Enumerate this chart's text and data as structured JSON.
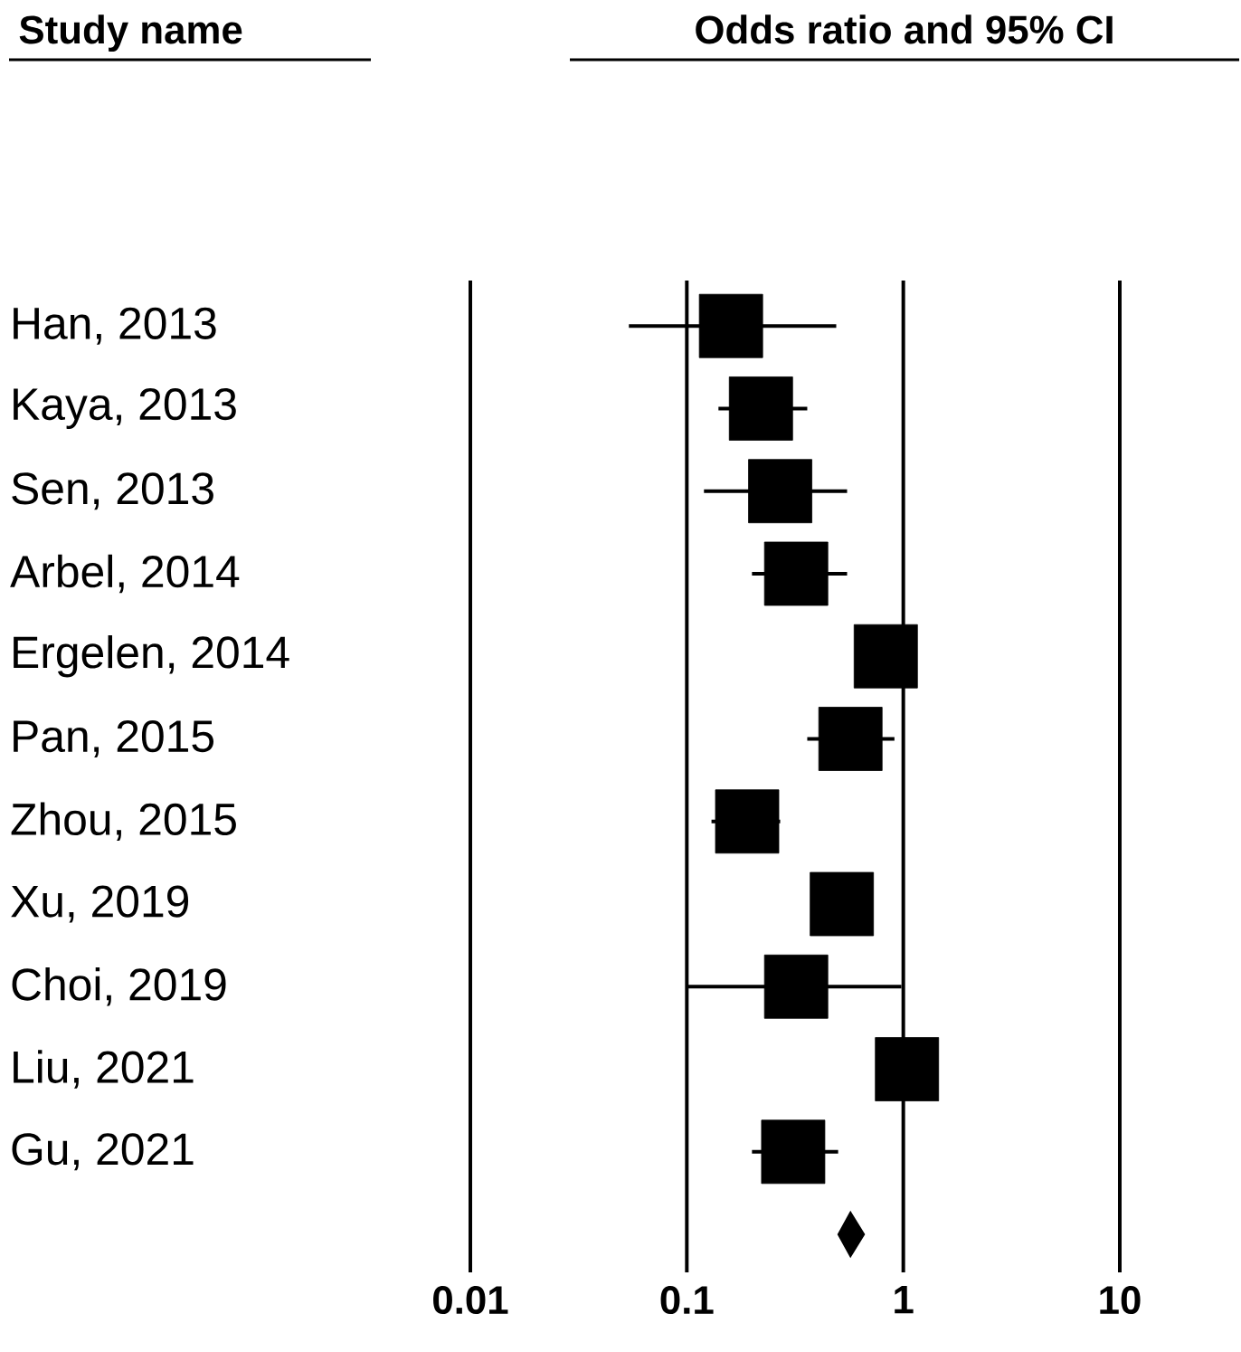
{
  "chart_data": {
    "type": "scatter",
    "title": "Odds ratio and 95% CI",
    "annotations": [
      "Study name"
    ],
    "orientation": "horizontal",
    "log": "x",
    "grid": "x",
    "categories": [
      "Han, 2013",
      "Kaya, 2013",
      "Sen, 2013",
      "Arbel, 2014",
      "Ergelen, 2014",
      "Pan, 2015",
      "Zhou, 2015",
      "Xu, 2019",
      "Choi, 2019",
      "Liu, 2021",
      "Gu, 2021",
      null
    ],
    "xlim": [
      0.01,
      10
    ],
    "xticks": [
      0.01,
      0.1,
      1,
      10
    ],
    "series": [
      {
        "color": "#000000",
        "marker": "square",
        "values": [
          0.16,
          0.22,
          0.27,
          0.32,
          0.83,
          0.57,
          0.19,
          0.52,
          0.32,
          1.04,
          0.31,
          null
        ],
        "errors": [
          [
            0.054,
            0.49
          ],
          [
            0.14,
            0.36
          ],
          [
            0.12,
            0.55
          ],
          [
            0.2,
            0.55
          ],
          null,
          [
            0.36,
            0.91
          ],
          [
            0.13,
            0.27
          ],
          null,
          [
            0.1,
            0.98
          ],
          null,
          [
            0.2,
            0.5
          ],
          null
        ]
      },
      {
        "color": "#000000",
        "marker": "diamond",
        "values": [
          null,
          null,
          null,
          null,
          null,
          null,
          null,
          null,
          null,
          null,
          null,
          0.57
        ],
        "errors": [
          null,
          null,
          null,
          null,
          null,
          null,
          null,
          null,
          null,
          null,
          null,
          [
            0.5,
            0.66
          ]
        ]
      }
    ]
  }
}
